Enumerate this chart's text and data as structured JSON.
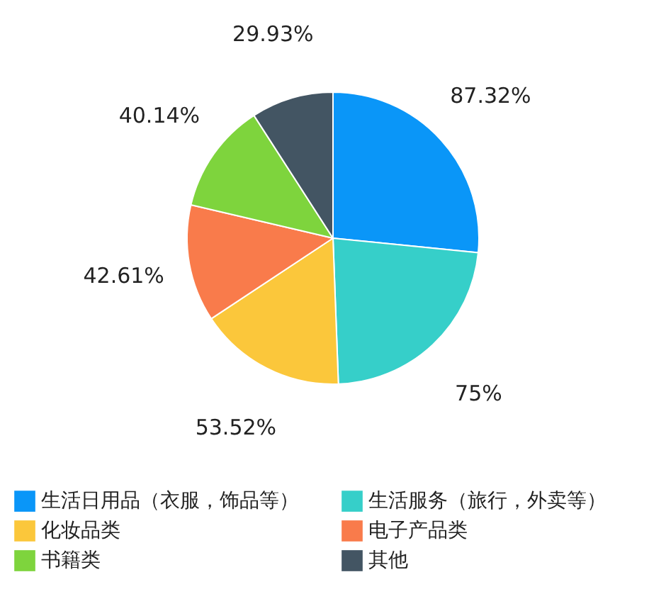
{
  "chart_data": {
    "type": "pie",
    "categories": [
      "生活日用品（衣服，饰品等）",
      "生活服务（旅行，外卖等）",
      "化妆品类",
      "电子产品类",
      "书籍类",
      "其他"
    ],
    "values": [
      87.32,
      75,
      53.52,
      42.61,
      40.14,
      29.93
    ],
    "value_labels": [
      "87.32%",
      "75%",
      "53.52%",
      "42.61%",
      "40.14%",
      "29.93%"
    ],
    "colors": [
      "#0a96f8",
      "#36cfc9",
      "#fbc73b",
      "#f97b4b",
      "#7ed43d",
      "#435563"
    ],
    "legend": "bottom"
  }
}
